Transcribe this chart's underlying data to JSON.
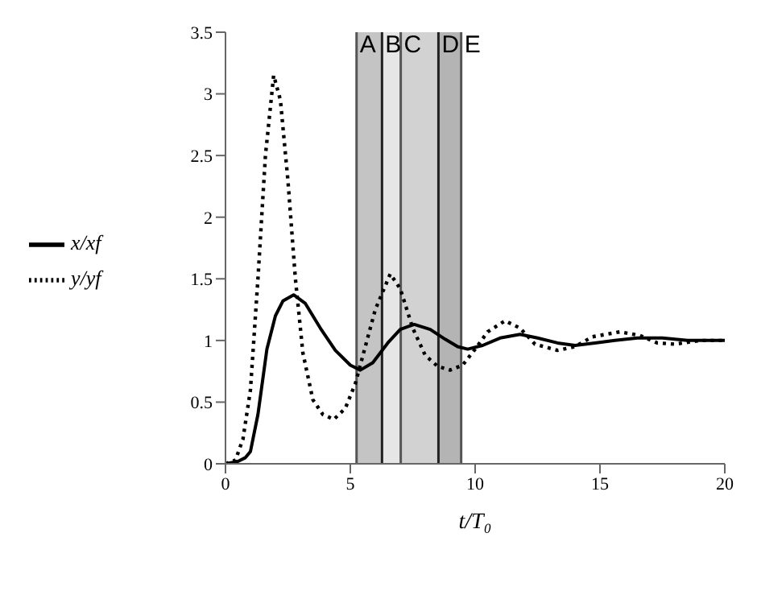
{
  "chart_data": {
    "type": "line",
    "xlabel": "t/T₀",
    "legend": "left",
    "xlim": [
      0,
      20
    ],
    "xticks": [
      0,
      5,
      10,
      15,
      20
    ],
    "ylim": [
      0,
      3.5
    ],
    "yticks": [
      0,
      0.5,
      1,
      1.5,
      2,
      2.5,
      3,
      3.5
    ],
    "grid": false,
    "series": [
      {
        "name": "x/xf",
        "color": "#000000",
        "line_style": "solid",
        "x": [
          0,
          0.5,
          0.8,
          1,
          1.3,
          1.66,
          2,
          2.3,
          2.73,
          3.2,
          3.8,
          4.4,
          5,
          5.4,
          5.9,
          6.5,
          7,
          7.56,
          8.2,
          8.8,
          9.3,
          9.7,
          10.3,
          11,
          11.8,
          12.5,
          13.3,
          14,
          14.8,
          15.6,
          16.5,
          17.5,
          18.5,
          19.3,
          20
        ],
        "values": [
          0,
          0.02,
          0.05,
          0.1,
          0.4,
          0.93,
          1.2,
          1.32,
          1.37,
          1.3,
          1.1,
          0.92,
          0.8,
          0.76,
          0.82,
          0.98,
          1.09,
          1.13,
          1.09,
          1.01,
          0.95,
          0.93,
          0.96,
          1.02,
          1.05,
          1.02,
          0.98,
          0.96,
          0.98,
          1.0,
          1.02,
          1.02,
          1.0,
          1.0,
          1.0
        ]
      },
      {
        "name": "y/yf",
        "color": "#000000",
        "line_style": "dotted",
        "x": [
          0,
          0.4,
          0.7,
          1,
          1.3,
          1.6,
          1.93,
          2.2,
          2.5,
          2.8,
          3.1,
          3.5,
          3.9,
          4.34,
          4.8,
          5.2,
          5.6,
          6,
          6.6,
          7,
          7.5,
          8,
          8.5,
          9,
          9.5,
          10,
          10.5,
          11.2,
          11.8,
          12.4,
          13.3,
          14,
          14.7,
          15.8,
          16.6,
          17.3,
          18,
          19,
          20
        ],
        "values": [
          0,
          0.03,
          0.2,
          0.6,
          1.5,
          2.5,
          3.15,
          2.95,
          2.3,
          1.5,
          0.9,
          0.52,
          0.4,
          0.36,
          0.45,
          0.65,
          0.95,
          1.25,
          1.54,
          1.42,
          1.1,
          0.88,
          0.79,
          0.76,
          0.8,
          0.93,
          1.07,
          1.16,
          1.1,
          0.97,
          0.92,
          0.95,
          1.03,
          1.07,
          1.04,
          0.98,
          0.97,
          1.0,
          1.0
        ]
      }
    ],
    "ref_lines": [
      {
        "axis": "x",
        "value": 5.25,
        "label": "A",
        "color": "#555555"
      },
      {
        "axis": "x",
        "value": 6.27,
        "label": "B",
        "color": "#222222"
      },
      {
        "axis": "x",
        "value": 7.02,
        "label": "C",
        "color": "#555555"
      },
      {
        "axis": "x",
        "value": 8.53,
        "label": "D",
        "color": "#222222"
      },
      {
        "axis": "x",
        "value": 9.44,
        "label": "E",
        "color": "#555555"
      }
    ],
    "bands": [
      {
        "axis": "x",
        "from": 5.25,
        "to": 6.27,
        "color": "#c4c4c4"
      },
      {
        "axis": "x",
        "from": 6.27,
        "to": 7.02,
        "color": "#e6e6e6"
      },
      {
        "axis": "x",
        "from": 7.02,
        "to": 8.53,
        "color": "#d2d2d2"
      },
      {
        "axis": "x",
        "from": 8.53,
        "to": 9.44,
        "color": "#b4b4b4"
      }
    ]
  }
}
